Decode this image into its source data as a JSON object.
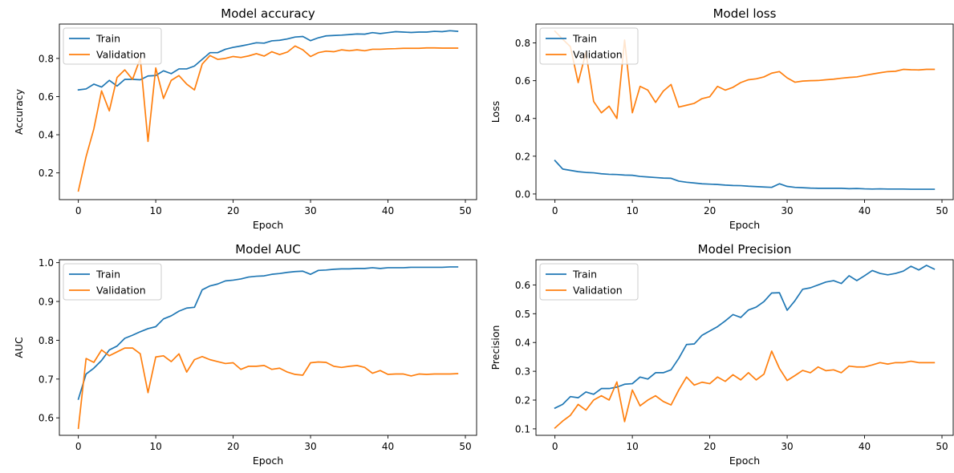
{
  "colors": {
    "train": "#1f77b4",
    "validation": "#ff7f0e",
    "axis": "#000000",
    "legend_border": "#cccccc"
  },
  "chart_data": [
    {
      "type": "line",
      "title": "Model accuracy",
      "xlabel": "Epoch",
      "ylabel": "Accuracy",
      "xlim": [
        -2.45,
        51.45
      ],
      "ylim": [
        0.06,
        0.98
      ],
      "xticks": [
        0,
        10,
        20,
        30,
        40,
        50
      ],
      "yticks": [
        0.2,
        0.4,
        0.6,
        0.8
      ],
      "ytick_labels": [
        "0.2",
        "0.4",
        "0.6",
        "0.8"
      ],
      "legend": "top-left",
      "x": [
        0,
        1,
        2,
        3,
        4,
        5,
        6,
        7,
        8,
        9,
        10,
        11,
        12,
        13,
        14,
        15,
        16,
        17,
        18,
        19,
        20,
        21,
        22,
        23,
        24,
        25,
        26,
        27,
        28,
        29,
        30,
        31,
        32,
        33,
        34,
        35,
        36,
        37,
        38,
        39,
        40,
        41,
        42,
        43,
        44,
        45,
        46,
        47,
        48,
        49
      ],
      "series": [
        {
          "name": "Train",
          "color": "#1f77b4",
          "values": [
            0.635,
            0.64,
            0.665,
            0.65,
            0.685,
            0.655,
            0.69,
            0.69,
            0.688,
            0.708,
            0.71,
            0.735,
            0.72,
            0.745,
            0.745,
            0.76,
            0.795,
            0.83,
            0.83,
            0.848,
            0.858,
            0.865,
            0.873,
            0.882,
            0.88,
            0.892,
            0.895,
            0.902,
            0.912,
            0.915,
            0.893,
            0.908,
            0.918,
            0.92,
            0.922,
            0.925,
            0.928,
            0.927,
            0.935,
            0.93,
            0.935,
            0.94,
            0.938,
            0.936,
            0.938,
            0.938,
            0.942,
            0.94,
            0.945,
            0.942
          ]
        },
        {
          "name": "Validation",
          "color": "#ff7f0e",
          "values": [
            0.105,
            0.285,
            0.43,
            0.63,
            0.525,
            0.7,
            0.74,
            0.69,
            0.8,
            0.365,
            0.75,
            0.59,
            0.685,
            0.71,
            0.665,
            0.635,
            0.77,
            0.815,
            0.795,
            0.8,
            0.81,
            0.805,
            0.813,
            0.825,
            0.812,
            0.835,
            0.82,
            0.833,
            0.865,
            0.845,
            0.81,
            0.83,
            0.838,
            0.835,
            0.845,
            0.84,
            0.845,
            0.84,
            0.848,
            0.848,
            0.85,
            0.851,
            0.853,
            0.853,
            0.853,
            0.855,
            0.855,
            0.854,
            0.854,
            0.854
          ]
        }
      ]
    },
    {
      "type": "line",
      "title": "Model loss",
      "xlabel": "Epoch",
      "ylabel": "Loss",
      "xlim": [
        -2.45,
        51.45
      ],
      "ylim": [
        -0.03,
        0.9
      ],
      "xticks": [
        0,
        10,
        20,
        30,
        40,
        50
      ],
      "yticks": [
        0.0,
        0.2,
        0.4,
        0.6,
        0.8
      ],
      "ytick_labels": [
        "0.0",
        "0.2",
        "0.4",
        "0.6",
        "0.8"
      ],
      "legend": "top-left",
      "x": [
        0,
        1,
        2,
        3,
        4,
        5,
        6,
        7,
        8,
        9,
        10,
        11,
        12,
        13,
        14,
        15,
        16,
        17,
        18,
        19,
        20,
        21,
        22,
        23,
        24,
        25,
        26,
        27,
        28,
        29,
        30,
        31,
        32,
        33,
        34,
        35,
        36,
        37,
        38,
        39,
        40,
        41,
        42,
        43,
        44,
        45,
        46,
        47,
        48,
        49
      ],
      "series": [
        {
          "name": "Train",
          "color": "#1f77b4",
          "values": [
            0.177,
            0.132,
            0.125,
            0.118,
            0.114,
            0.112,
            0.107,
            0.104,
            0.103,
            0.1,
            0.099,
            0.093,
            0.09,
            0.087,
            0.084,
            0.083,
            0.068,
            0.062,
            0.058,
            0.054,
            0.052,
            0.05,
            0.047,
            0.045,
            0.044,
            0.041,
            0.039,
            0.037,
            0.035,
            0.054,
            0.04,
            0.035,
            0.033,
            0.031,
            0.03,
            0.03,
            0.03,
            0.03,
            0.028,
            0.029,
            0.027,
            0.026,
            0.027,
            0.026,
            0.026,
            0.026,
            0.025,
            0.025,
            0.025,
            0.025
          ]
        },
        {
          "name": "Validation",
          "color": "#ff7f0e",
          "values": [
            0.862,
            0.82,
            0.78,
            0.59,
            0.75,
            0.49,
            0.43,
            0.465,
            0.4,
            0.815,
            0.43,
            0.57,
            0.55,
            0.485,
            0.545,
            0.58,
            0.46,
            0.47,
            0.48,
            0.505,
            0.515,
            0.57,
            0.55,
            0.565,
            0.59,
            0.605,
            0.61,
            0.62,
            0.64,
            0.648,
            0.615,
            0.592,
            0.598,
            0.6,
            0.601,
            0.605,
            0.608,
            0.613,
            0.617,
            0.62,
            0.628,
            0.635,
            0.642,
            0.648,
            0.65,
            0.66,
            0.658,
            0.657,
            0.66,
            0.66
          ]
        }
      ]
    },
    {
      "type": "line",
      "title": "Model AUC",
      "xlabel": "Epoch",
      "ylabel": "AUC",
      "xlim": [
        -2.45,
        51.45
      ],
      "ylim": [
        0.555,
        1.0075
      ],
      "xticks": [
        0,
        10,
        20,
        30,
        40,
        50
      ],
      "yticks": [
        0.6,
        0.7,
        0.8,
        0.9,
        1.0
      ],
      "ytick_labels": [
        "0.6",
        "0.7",
        "0.8",
        "0.9",
        "1.0"
      ],
      "legend": "top-left",
      "x": [
        0,
        1,
        2,
        3,
        4,
        5,
        6,
        7,
        8,
        9,
        10,
        11,
        12,
        13,
        14,
        15,
        16,
        17,
        18,
        19,
        20,
        21,
        22,
        23,
        24,
        25,
        26,
        27,
        28,
        29,
        30,
        31,
        32,
        33,
        34,
        35,
        36,
        37,
        38,
        39,
        40,
        41,
        42,
        43,
        44,
        45,
        46,
        47,
        48,
        49
      ],
      "series": [
        {
          "name": "Train",
          "color": "#1f77b4",
          "values": [
            0.648,
            0.713,
            0.728,
            0.748,
            0.775,
            0.785,
            0.805,
            0.813,
            0.822,
            0.83,
            0.835,
            0.855,
            0.863,
            0.875,
            0.883,
            0.885,
            0.93,
            0.94,
            0.945,
            0.953,
            0.955,
            0.958,
            0.963,
            0.965,
            0.966,
            0.97,
            0.972,
            0.975,
            0.977,
            0.978,
            0.97,
            0.98,
            0.981,
            0.983,
            0.984,
            0.984,
            0.985,
            0.985,
            0.987,
            0.985,
            0.987,
            0.987,
            0.987,
            0.988,
            0.988,
            0.988,
            0.988,
            0.988,
            0.989,
            0.989
          ]
        },
        {
          "name": "Validation",
          "color": "#ff7f0e",
          "values": [
            0.573,
            0.753,
            0.743,
            0.775,
            0.76,
            0.77,
            0.78,
            0.78,
            0.765,
            0.665,
            0.757,
            0.76,
            0.745,
            0.765,
            0.718,
            0.75,
            0.758,
            0.75,
            0.745,
            0.74,
            0.742,
            0.725,
            0.733,
            0.733,
            0.735,
            0.725,
            0.728,
            0.718,
            0.712,
            0.71,
            0.742,
            0.744,
            0.743,
            0.733,
            0.73,
            0.733,
            0.735,
            0.73,
            0.715,
            0.722,
            0.712,
            0.713,
            0.713,
            0.708,
            0.713,
            0.712,
            0.713,
            0.713,
            0.713,
            0.714
          ]
        }
      ]
    },
    {
      "type": "line",
      "title": "Model Precision",
      "xlabel": "Epoch",
      "ylabel": "Precision",
      "xlim": [
        -2.45,
        51.45
      ],
      "ylim": [
        0.0775,
        0.6875
      ],
      "xticks": [
        0,
        10,
        20,
        30,
        40,
        50
      ],
      "yticks": [
        0.1,
        0.2,
        0.3,
        0.4,
        0.5,
        0.6
      ],
      "ytick_labels": [
        "0.1",
        "0.2",
        "0.3",
        "0.4",
        "0.5",
        "0.6"
      ],
      "legend": "top-left",
      "x": [
        0,
        1,
        2,
        3,
        4,
        5,
        6,
        7,
        8,
        9,
        10,
        11,
        12,
        13,
        14,
        15,
        16,
        17,
        18,
        19,
        20,
        21,
        22,
        23,
        24,
        25,
        26,
        27,
        28,
        29,
        30,
        31,
        32,
        33,
        34,
        35,
        36,
        37,
        38,
        39,
        40,
        41,
        42,
        43,
        44,
        45,
        46,
        47,
        48,
        49
      ],
      "series": [
        {
          "name": "Train",
          "color": "#1f77b4",
          "values": [
            0.172,
            0.185,
            0.212,
            0.208,
            0.228,
            0.22,
            0.24,
            0.24,
            0.245,
            0.255,
            0.257,
            0.28,
            0.273,
            0.295,
            0.295,
            0.305,
            0.345,
            0.393,
            0.395,
            0.425,
            0.44,
            0.455,
            0.475,
            0.497,
            0.487,
            0.513,
            0.523,
            0.542,
            0.572,
            0.573,
            0.512,
            0.545,
            0.585,
            0.59,
            0.6,
            0.61,
            0.615,
            0.605,
            0.632,
            0.615,
            0.632,
            0.65,
            0.64,
            0.635,
            0.64,
            0.648,
            0.665,
            0.652,
            0.668,
            0.655
          ]
        },
        {
          "name": "Validation",
          "color": "#ff7f0e",
          "values": [
            0.103,
            0.127,
            0.147,
            0.185,
            0.165,
            0.2,
            0.215,
            0.2,
            0.263,
            0.125,
            0.235,
            0.18,
            0.2,
            0.215,
            0.195,
            0.183,
            0.235,
            0.28,
            0.252,
            0.262,
            0.257,
            0.28,
            0.265,
            0.288,
            0.27,
            0.295,
            0.27,
            0.29,
            0.37,
            0.31,
            0.268,
            0.285,
            0.303,
            0.295,
            0.315,
            0.302,
            0.305,
            0.295,
            0.318,
            0.315,
            0.315,
            0.322,
            0.33,
            0.325,
            0.33,
            0.33,
            0.335,
            0.33,
            0.33,
            0.33
          ]
        }
      ]
    }
  ]
}
